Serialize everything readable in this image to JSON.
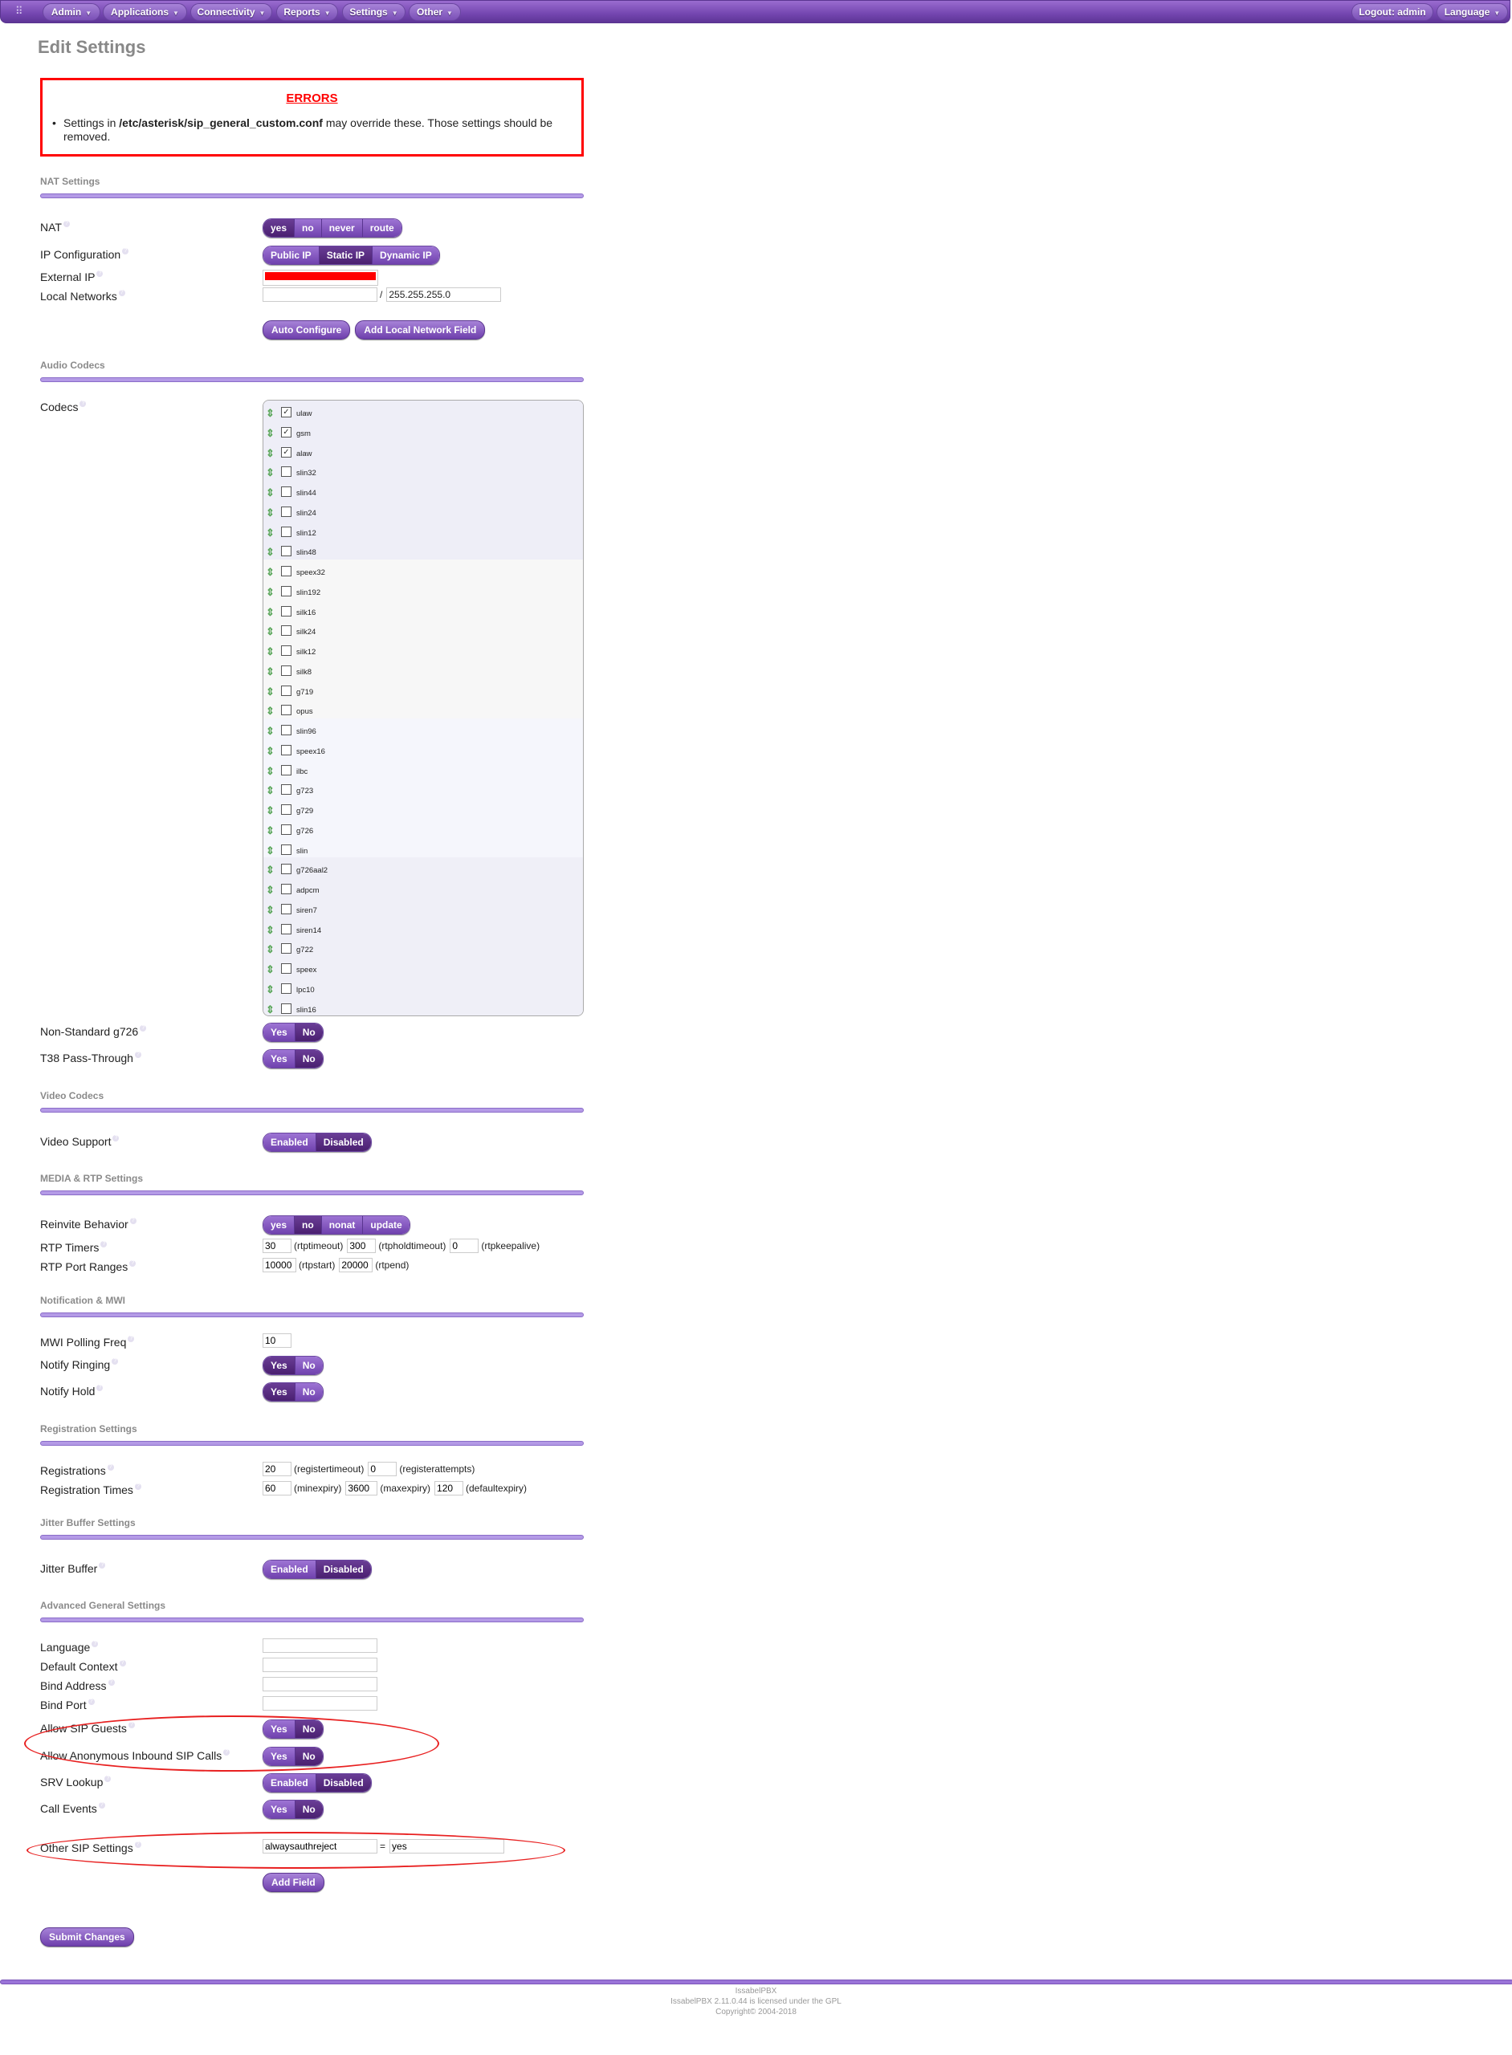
{
  "nav": {
    "logo_icon": "grid-dots-icon",
    "items": [
      "Admin",
      "Applications",
      "Connectivity",
      "Reports",
      "Settings",
      "Other"
    ],
    "logout": "Logout: admin",
    "language": "Language"
  },
  "page_title": "Edit Settings",
  "errors": {
    "title": "ERRORS",
    "text_pre": "Settings in ",
    "path": "/etc/asterisk/sip_general_custom.conf",
    "text_post": " may override these. Those settings should be removed."
  },
  "sections": [
    {
      "heading": "NAT Settings",
      "rows": [
        {
          "type": "toggle",
          "label": "NAT",
          "options": [
            "yes",
            "no",
            "never",
            "route"
          ],
          "selected": "yes"
        },
        {
          "type": "toggle",
          "label": "IP Configuration",
          "options": [
            "Public IP",
            "Static IP",
            "Dynamic IP"
          ],
          "selected": "Static IP"
        },
        {
          "type": "redacted",
          "label": "External IP",
          "value": ""
        },
        {
          "type": "network",
          "label": "Local Networks",
          "value": "",
          "mask": "255.255.255.0",
          "separator": "/"
        },
        {
          "type": "buttons",
          "label": "",
          "buttons": [
            "Auto Configure",
            "Add Local Network Field"
          ]
        }
      ]
    },
    {
      "heading": "Audio Codecs",
      "rows": [
        {
          "type": "codecs",
          "label": "Codecs",
          "codecs": [
            {
              "name": "ulaw",
              "checked": true
            },
            {
              "name": "gsm",
              "checked": true
            },
            {
              "name": "alaw",
              "checked": true
            },
            {
              "name": "slin32",
              "checked": false
            },
            {
              "name": "slin44",
              "checked": false
            },
            {
              "name": "slin24",
              "checked": false
            },
            {
              "name": "slin12",
              "checked": false
            },
            {
              "name": "slin48",
              "checked": false
            },
            {
              "name": "speex32",
              "checked": false
            },
            {
              "name": "slin192",
              "checked": false
            },
            {
              "name": "silk16",
              "checked": false
            },
            {
              "name": "silk24",
              "checked": false
            },
            {
              "name": "silk12",
              "checked": false
            },
            {
              "name": "silk8",
              "checked": false
            },
            {
              "name": "g719",
              "checked": false
            },
            {
              "name": "opus",
              "checked": false
            },
            {
              "name": "slin96",
              "checked": false
            },
            {
              "name": "speex16",
              "checked": false
            },
            {
              "name": "ilbc",
              "checked": false
            },
            {
              "name": "g723",
              "checked": false
            },
            {
              "name": "g729",
              "checked": false
            },
            {
              "name": "g726",
              "checked": false
            },
            {
              "name": "slin",
              "checked": false
            },
            {
              "name": "g726aal2",
              "checked": false
            },
            {
              "name": "adpcm",
              "checked": false
            },
            {
              "name": "siren7",
              "checked": false
            },
            {
              "name": "siren14",
              "checked": false
            },
            {
              "name": "g722",
              "checked": false
            },
            {
              "name": "speex",
              "checked": false
            },
            {
              "name": "lpc10",
              "checked": false
            },
            {
              "name": "slin16",
              "checked": false
            }
          ]
        },
        {
          "type": "toggle",
          "label": "Non-Standard g726",
          "options": [
            "Yes",
            "No"
          ],
          "selected": "No"
        },
        {
          "type": "toggle",
          "label": "T38 Pass-Through",
          "options": [
            "Yes",
            "No"
          ],
          "selected": "No"
        }
      ]
    },
    {
      "heading": "Video Codecs",
      "rows": [
        {
          "type": "toggle",
          "label": "Video Support",
          "options": [
            "Enabled",
            "Disabled"
          ],
          "selected": "Disabled"
        }
      ]
    },
    {
      "heading": "MEDIA & RTP Settings",
      "rows": [
        {
          "type": "toggle",
          "label": "Reinvite Behavior",
          "options": [
            "yes",
            "no",
            "nonat",
            "update"
          ],
          "selected": "no"
        },
        {
          "type": "multi",
          "label": "RTP Timers",
          "fields": [
            {
              "value": "30",
              "suffix": "(rtptimeout)"
            },
            {
              "value": "300",
              "suffix": "(rtpholdtimeout)"
            },
            {
              "value": "0",
              "suffix": "(rtpkeepalive)"
            }
          ]
        },
        {
          "type": "multi",
          "label": "RTP Port Ranges",
          "fields": [
            {
              "value": "10000",
              "suffix": "(rtpstart)"
            },
            {
              "value": "20000",
              "suffix": "(rtpend)"
            }
          ]
        }
      ]
    },
    {
      "heading": "Notification & MWI",
      "rows": [
        {
          "type": "multi",
          "label": "MWI Polling Freq",
          "fields": [
            {
              "value": "10",
              "suffix": ""
            }
          ]
        },
        {
          "type": "toggle",
          "label": "Notify Ringing",
          "options": [
            "Yes",
            "No"
          ],
          "selected": "Yes"
        },
        {
          "type": "toggle",
          "label": "Notify Hold",
          "options": [
            "Yes",
            "No"
          ],
          "selected": "Yes"
        }
      ]
    },
    {
      "heading": "Registration Settings",
      "rows": [
        {
          "type": "multi",
          "label": "Registrations",
          "fields": [
            {
              "value": "20",
              "suffix": "(registertimeout)"
            },
            {
              "value": "0",
              "suffix": "(registerattempts)"
            }
          ]
        },
        {
          "type": "multi",
          "label": "Registration Times",
          "fields": [
            {
              "value": "60",
              "suffix": "(minexpiry)"
            },
            {
              "value": "3600",
              "suffix": "(maxexpiry)"
            },
            {
              "value": "120",
              "suffix": "(defaultexpiry)"
            }
          ]
        }
      ]
    },
    {
      "heading": "Jitter Buffer Settings",
      "rows": [
        {
          "type": "toggle",
          "label": "Jitter Buffer",
          "options": [
            "Enabled",
            "Disabled"
          ],
          "selected": "Disabled"
        }
      ]
    },
    {
      "heading": "Advanced General Settings",
      "rows": [
        {
          "type": "text",
          "label": "Language",
          "value": ""
        },
        {
          "type": "text",
          "label": "Default Context",
          "value": ""
        },
        {
          "type": "text",
          "label": "Bind Address",
          "value": ""
        },
        {
          "type": "text",
          "label": "Bind Port",
          "value": ""
        },
        {
          "type": "toggle",
          "label": "Allow SIP Guests",
          "options": [
            "Yes",
            "No"
          ],
          "selected": "No"
        },
        {
          "type": "toggle",
          "label": "Allow Anonymous Inbound SIP Calls",
          "options": [
            "Yes",
            "No"
          ],
          "selected": "No"
        },
        {
          "type": "toggle",
          "label": "SRV Lookup",
          "options": [
            "Enabled",
            "Disabled"
          ],
          "selected": "Disabled"
        },
        {
          "type": "toggle",
          "label": "Call Events",
          "options": [
            "Yes",
            "No"
          ],
          "selected": "No"
        },
        {
          "type": "keyvalue",
          "label": "Other SIP Settings",
          "key": "alwaysauthreject",
          "separator": "=",
          "value": "yes"
        },
        {
          "type": "buttons",
          "label": "",
          "buttons": [
            "Add Field"
          ]
        }
      ]
    }
  ],
  "submit_label": "Submit Changes",
  "annotation_color": "#e82020",
  "redaction_color": "#ff0000",
  "footer": {
    "line1": "IssabelPBX",
    "line2": "IssabelPBX 2.11.0.44 is licensed under the GPL",
    "line3": "Copyright© 2004-2018"
  }
}
